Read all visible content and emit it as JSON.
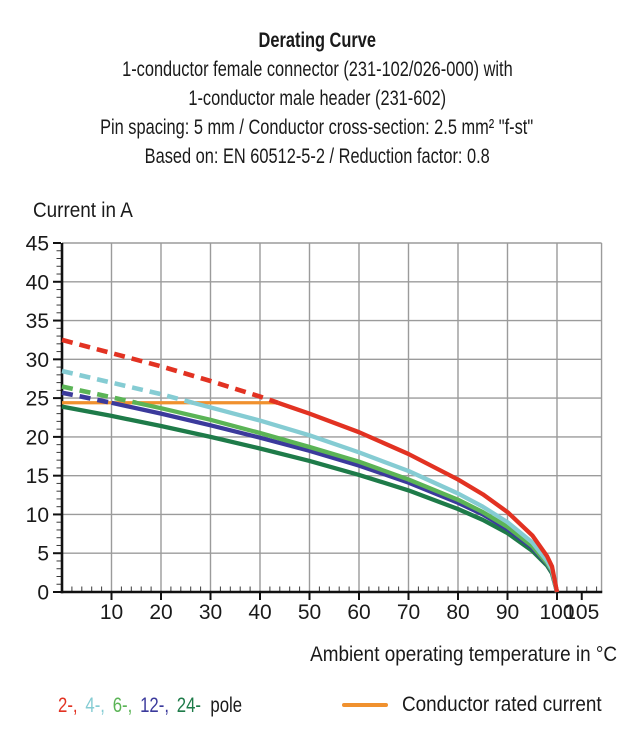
{
  "header": {
    "subtitle_lines": [
      "1-conductor female connector (231-102/026-000) with",
      "1-conductor male header (231-602)",
      "Pin spacing: 5 mm / Conductor cross-section: 2.5 mm² \"f-st\"",
      "Based on: EN 60512-5-2 / Reduction factor: 0.8"
    ]
  },
  "chart_data": {
    "type": "line",
    "title": "Derating Curve",
    "xlabel": "Ambient operating temperature in °C",
    "ylabel": "Current in A",
    "xlim": [
      0,
      109
    ],
    "ylim": [
      0,
      45
    ],
    "x_major_ticks": [
      10,
      20,
      30,
      40,
      50,
      60,
      70,
      80,
      90,
      100,
      105
    ],
    "y_major_ticks": [
      0,
      5,
      10,
      15,
      20,
      25,
      30,
      35,
      40,
      45
    ],
    "x_minor_tick_step": 2,
    "y_minor_tick_step": 1,
    "grid": true,
    "x": [
      0,
      10,
      20,
      30,
      40,
      50,
      60,
      70,
      80,
      85,
      90,
      95,
      98,
      99,
      100
    ],
    "series": [
      {
        "name": "2-pole",
        "color": "#e23222",
        "values": [
          32.5,
          30.8,
          29.1,
          27.2,
          25.2,
          23.0,
          20.6,
          17.8,
          14.5,
          12.6,
          10.3,
          7.3,
          4.6,
          3.3,
          0
        ],
        "dashed_above_rated": true
      },
      {
        "name": "4-pole",
        "color": "#85ccd3",
        "values": [
          28.5,
          27.0,
          25.5,
          23.8,
          22.1,
          20.2,
          18.0,
          15.6,
          12.7,
          11.0,
          9.0,
          6.4,
          4.0,
          2.9,
          0
        ],
        "dashed_above_rated": true
      },
      {
        "name": "6-pole",
        "color": "#5bb456",
        "values": [
          26.5,
          25.1,
          23.7,
          22.2,
          20.5,
          18.7,
          16.8,
          14.5,
          11.9,
          10.3,
          8.4,
          5.9,
          3.7,
          2.7,
          0
        ],
        "dashed_above_rated": true
      },
      {
        "name": "12-pole",
        "color": "#3b3a9c",
        "values": [
          25.7,
          24.4,
          23.0,
          21.5,
          19.9,
          18.2,
          16.3,
          14.1,
          11.5,
          10.0,
          8.1,
          5.7,
          3.6,
          2.6,
          0
        ],
        "dashed_above_rated": true
      },
      {
        "name": "24-pole",
        "color": "#1e7b49",
        "values": [
          23.9,
          22.7,
          21.4,
          20.0,
          18.5,
          16.9,
          15.1,
          13.1,
          10.7,
          9.3,
          7.6,
          5.3,
          3.4,
          2.4,
          0
        ],
        "dashed_above_rated": true
      }
    ],
    "rated_current": {
      "label": "Conductor rated current",
      "value": 24.4,
      "color": "#f0912e",
      "note": "horizontal line from 0 °C to intersection with 2-pole curve"
    },
    "legend_position": "bottom"
  },
  "legend": {
    "poles": [
      {
        "label": "2-,",
        "color": "#e23222"
      },
      {
        "label": "4-,",
        "color": "#85ccd3"
      },
      {
        "label": "6-,",
        "color": "#5bb456"
      },
      {
        "label": "12-,",
        "color": "#3b3a9c"
      },
      {
        "label": "24-",
        "color": "#1e7b49"
      }
    ],
    "suffix": "pole"
  }
}
